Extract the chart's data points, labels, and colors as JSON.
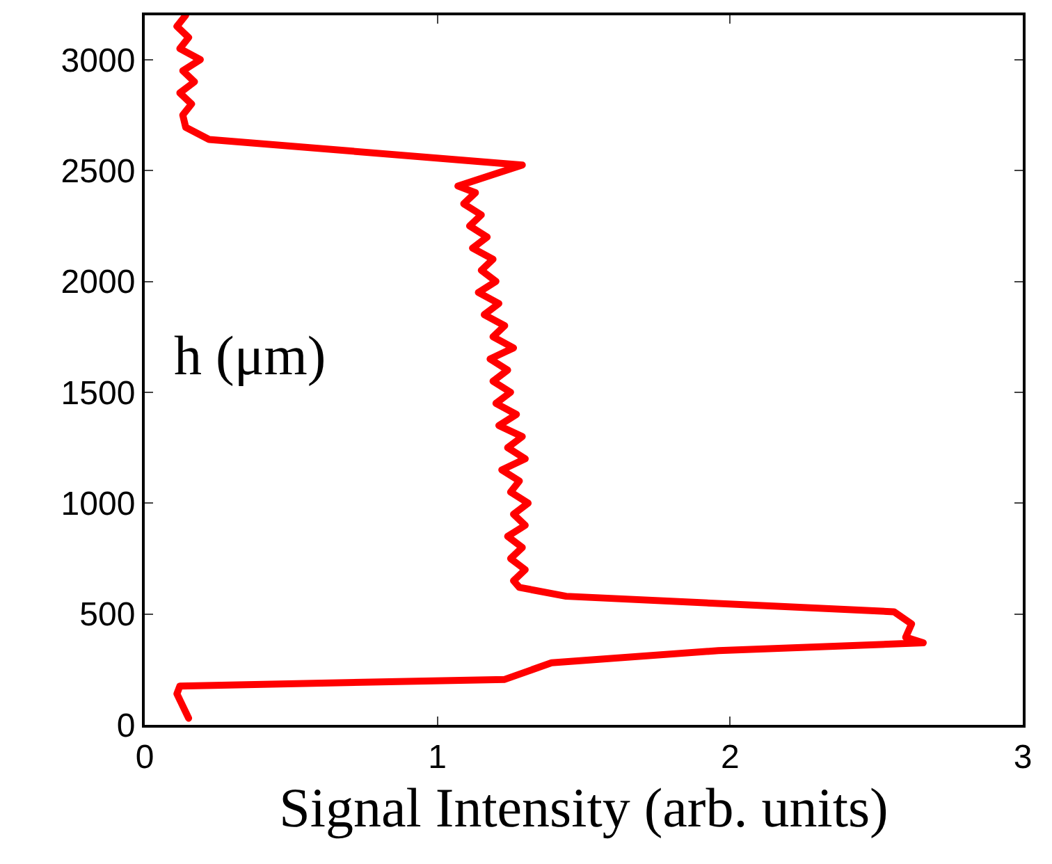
{
  "chart_data": {
    "type": "line",
    "xlabel": "Signal Intensity (arb. units)",
    "ylabel": "h (μm)",
    "xlim": [
      0,
      3
    ],
    "xticks": [
      0,
      1,
      2,
      3
    ],
    "ylim": [
      0,
      3200
    ],
    "yticks": [
      0,
      500,
      1000,
      1500,
      2000,
      2500,
      3000
    ],
    "marker": "none",
    "line_style": "solid",
    "series": [
      {
        "color": "#ff0000",
        "x": [
          0.15,
          0.11,
          0.12,
          1.23,
          1.39,
          1.96,
          2.66,
          2.6,
          2.62,
          2.56,
          1.44,
          1.28,
          1.26,
          1.3,
          1.25,
          1.29,
          1.24,
          1.3,
          1.26,
          1.31,
          1.25,
          1.28,
          1.22,
          1.3,
          1.24,
          1.29,
          1.21,
          1.27,
          1.2,
          1.25,
          1.19,
          1.24,
          1.18,
          1.26,
          1.19,
          1.23,
          1.16,
          1.21,
          1.14,
          1.2,
          1.15,
          1.19,
          1.12,
          1.17,
          1.11,
          1.15,
          1.09,
          1.13,
          1.07,
          1.29,
          0.22,
          0.14,
          0.13,
          0.16,
          0.12,
          0.17,
          0.13,
          0.19,
          0.12,
          0.15,
          0.11,
          0.14
        ],
        "values": [
          30,
          140,
          175,
          205,
          280,
          335,
          370,
          395,
          455,
          510,
          580,
          620,
          650,
          700,
          750,
          800,
          850,
          900,
          950,
          1000,
          1050,
          1100,
          1150,
          1200,
          1250,
          1300,
          1350,
          1400,
          1450,
          1500,
          1550,
          1600,
          1650,
          1700,
          1750,
          1800,
          1850,
          1900,
          1950,
          2000,
          2050,
          2100,
          2150,
          2200,
          2250,
          2300,
          2350,
          2400,
          2430,
          2525,
          2640,
          2695,
          2750,
          2800,
          2850,
          2900,
          2950,
          3000,
          3050,
          3100,
          3150,
          3200
        ]
      }
    ]
  }
}
